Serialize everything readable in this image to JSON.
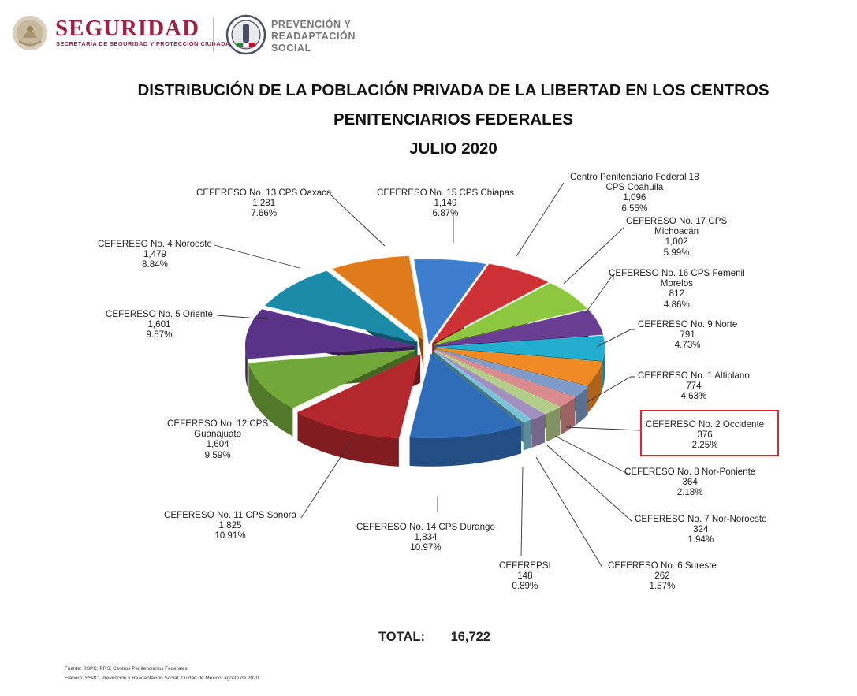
{
  "header": {
    "brand": "SEGURIDAD",
    "brand_sub_1": "SECRETARÍA DE SEGURIDAD",
    "brand_sub_2": "Y PROTECCIÓN CIUDADANA",
    "agency_1": "PREVENCIÓN Y",
    "agency_2": "READAPTACIÓN",
    "agency_3": "SOCIAL",
    "colors": {
      "brand": "#9f2241",
      "agency": "#777777"
    },
    "icons": [
      "mexico-coat-of-arms-icon",
      "prs-emblem-icon"
    ]
  },
  "title": {
    "line1": "DISTRIBUCIÓN DE LA POBLACIÓN PRIVADA DE LA LIBERTAD EN LOS CENTROS",
    "line2": "PENITENCIARIOS FEDERALES",
    "line3": "JULIO 2020"
  },
  "chart_data": {
    "type": "pie",
    "style": "3d-exploded",
    "highlight_color": "#e3242b",
    "slices": [
      {
        "name": [
          "CEFERESO No. 15 CPS Chiapas"
        ],
        "value": 1149,
        "value_label": "1,149",
        "percent_label": "6.87%",
        "color": "#3d7fce",
        "highlight": false
      },
      {
        "name": [
          "Centro Penitenciario Federal 18",
          "CPS Coahuila"
        ],
        "value": 1096,
        "value_label": "1,096",
        "percent_label": "6.55%",
        "color": "#cf3236",
        "highlight": false
      },
      {
        "name": [
          "CEFERESO No. 17 CPS",
          "Michoacán"
        ],
        "value": 1002,
        "value_label": "1,002",
        "percent_label": "5.99%",
        "color": "#8dc63f",
        "highlight": false
      },
      {
        "name": [
          "CEFERESO No. 16 CPS Femenil",
          "Morelos"
        ],
        "value": 812,
        "value_label": "812",
        "percent_label": "4.86%",
        "color": "#6a3e92",
        "highlight": false
      },
      {
        "name": [
          "CEFERESO No. 9 Norte"
        ],
        "value": 791,
        "value_label": "791",
        "percent_label": "4.73%",
        "color": "#23aed0",
        "highlight": false
      },
      {
        "name": [
          "CEFERESO No. 1 Altiplano"
        ],
        "value": 774,
        "value_label": "774",
        "percent_label": "4.63%",
        "color": "#f08a24",
        "highlight": false
      },
      {
        "name": [
          "CEFERESO No. 2 Occidente"
        ],
        "value": 376,
        "value_label": "376",
        "percent_label": "2.25%",
        "color": "#7f9cc9",
        "highlight": true
      },
      {
        "name": [
          "CEFERESO No. 8 Nor-Poniente"
        ],
        "value": 364,
        "value_label": "364",
        "percent_label": "2.18%",
        "color": "#d98a8c",
        "highlight": false
      },
      {
        "name": [
          "CEFERESO No. 7 Nor-Noroeste"
        ],
        "value": 324,
        "value_label": "324",
        "percent_label": "1.94%",
        "color": "#b3cc8a",
        "highlight": false
      },
      {
        "name": [
          "CEFERESO No. 6 Sureste"
        ],
        "value": 262,
        "value_label": "262",
        "percent_label": "1.57%",
        "color": "#a18fbf",
        "highlight": false
      },
      {
        "name": [
          "CEFEREPSI"
        ],
        "value": 148,
        "value_label": "148",
        "percent_label": "0.89%",
        "color": "#7ac3d6",
        "highlight": false
      },
      {
        "name": [
          "CEFERESO No. 14 CPS Durango"
        ],
        "value": 1834,
        "value_label": "1,834",
        "percent_label": "10.97%",
        "color": "#2f6db8",
        "highlight": false
      },
      {
        "name": [
          "CEFERESO No. 11 CPS Sonora"
        ],
        "value": 1825,
        "value_label": "1,825",
        "percent_label": "10.91%",
        "color": "#b3282d",
        "highlight": false
      },
      {
        "name": [
          "CEFERESO No. 12 CPS",
          "Guanajuato"
        ],
        "value": 1604,
        "value_label": "1,604",
        "percent_label": "9.59%",
        "color": "#72a83a",
        "highlight": false
      },
      {
        "name": [
          "CEFERESO No. 5 Oriente"
        ],
        "value": 1601,
        "value_label": "1,601",
        "percent_label": "9.57%",
        "color": "#5a3389",
        "highlight": false
      },
      {
        "name": [
          "CEFERESO No. 4 Noroeste"
        ],
        "value": 1479,
        "value_label": "1,479",
        "percent_label": "8.84%",
        "color": "#1b8ba8",
        "highlight": false
      },
      {
        "name": [
          "CEFERESO No. 13 CPS Oaxaca"
        ],
        "value": 1281,
        "value_label": "1,281",
        "percent_label": "7.66%",
        "color": "#e07b1c",
        "highlight": false
      }
    ]
  },
  "total": {
    "label": "TOTAL:",
    "value": "16,722"
  },
  "footer": {
    "source": "Fuente: SSPC, PRS, Centros Penitenciarios Federales.",
    "credit": "Elaboró: SSPC, Prevención y Readaptación Social; Ciudad de México, agosto de 2020."
  }
}
